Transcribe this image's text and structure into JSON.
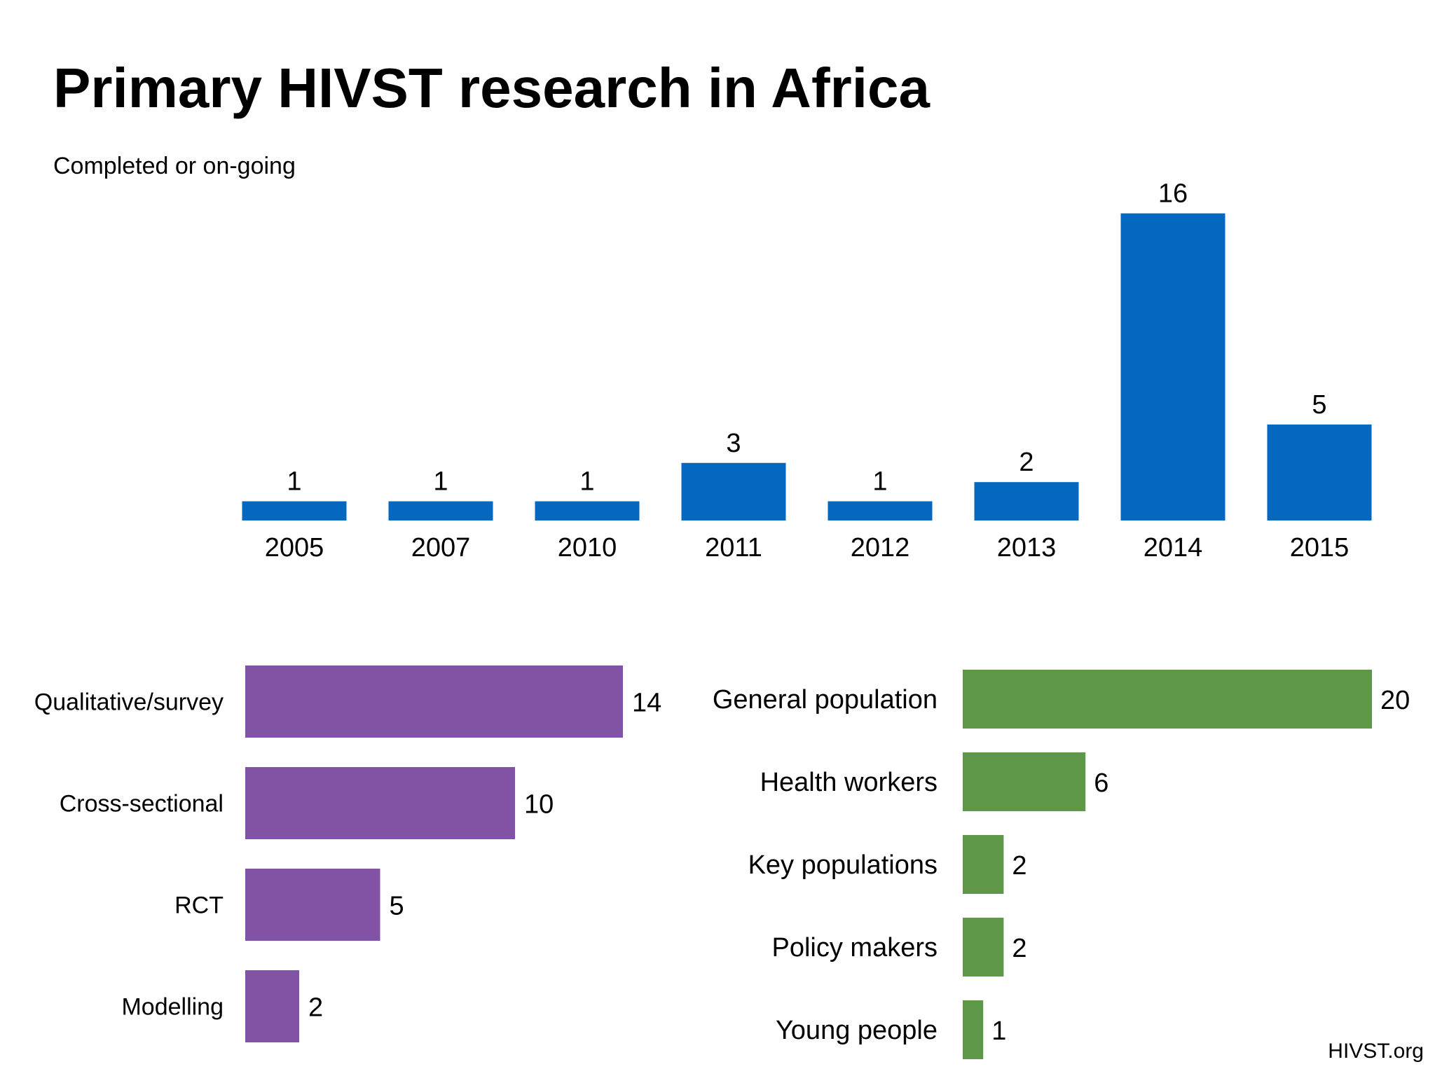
{
  "title": "Primary HIVST research in Africa",
  "subtitle": "Completed or on-going",
  "source": "HIVST.org",
  "chart_data": [
    {
      "type": "bar",
      "orientation": "vertical",
      "categories": [
        "2005",
        "2007",
        "2010",
        "2011",
        "2012",
        "2013",
        "2014",
        "2015"
      ],
      "values": [
        1,
        1,
        1,
        3,
        1,
        2,
        16,
        5
      ],
      "color": "#0468C1",
      "data_labels": true,
      "grid": false
    },
    {
      "type": "bar",
      "orientation": "horizontal",
      "categories": [
        "Qualitative/survey",
        "Cross-sectional",
        "RCT",
        "Modelling"
      ],
      "values": [
        14,
        10,
        5,
        2
      ],
      "color": "#8253A5",
      "data_labels": true,
      "grid": false
    },
    {
      "type": "bar",
      "orientation": "horizontal",
      "categories": [
        "General population",
        "Health workers",
        "Key populations",
        "Policy makers",
        "Young people"
      ],
      "values": [
        20,
        6,
        2,
        2,
        1
      ],
      "color": "#5F9749",
      "data_labels": true,
      "grid": false
    }
  ]
}
